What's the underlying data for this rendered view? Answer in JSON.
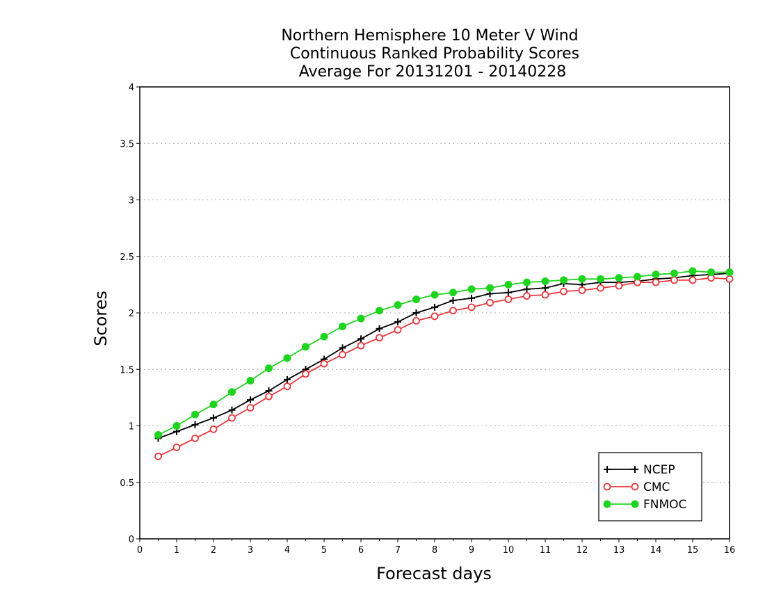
{
  "chart_data": {
    "type": "line",
    "title_lines": [
      "Northern Hemisphere 10 Meter V Wind",
      "Continuous Ranked Probability Scores",
      "Average For 20131201 - 20140228"
    ],
    "xlabel": "Forecast days",
    "ylabel": "Scores",
    "xlim": [
      0,
      16
    ],
    "ylim": [
      0,
      4
    ],
    "xticks": [
      0,
      1,
      2,
      3,
      4,
      5,
      6,
      7,
      8,
      9,
      10,
      11,
      12,
      13,
      14,
      15,
      16
    ],
    "yticks": [
      0,
      0.5,
      1,
      1.5,
      2,
      2.5,
      3,
      3.5,
      4
    ],
    "ytick_labels": [
      "0",
      "0.5",
      "1",
      "1.5",
      "2",
      "2.5",
      "3",
      "3.5",
      "4"
    ],
    "grid": "horizontal dotted",
    "legend_position": "bottom-right",
    "x": [
      0.5,
      1,
      1.5,
      2,
      2.5,
      3,
      3.5,
      4,
      4.5,
      5,
      5.5,
      6,
      6.5,
      7,
      7.5,
      8,
      8.5,
      9,
      9.5,
      10,
      10.5,
      11,
      11.5,
      12,
      12.5,
      13,
      13.5,
      14,
      14.5,
      15,
      15.5,
      16
    ],
    "series": [
      {
        "name": "NCEP",
        "color": "#000000",
        "marker": "plus",
        "values": [
          0.89,
          0.95,
          1.01,
          1.07,
          1.14,
          1.23,
          1.31,
          1.41,
          1.5,
          1.59,
          1.69,
          1.77,
          1.86,
          1.92,
          2.0,
          2.05,
          2.11,
          2.13,
          2.17,
          2.18,
          2.21,
          2.22,
          2.26,
          2.25,
          2.27,
          2.27,
          2.28,
          2.3,
          2.31,
          2.33,
          2.34,
          2.35
        ]
      },
      {
        "name": "CMC",
        "color": "#e8383d",
        "marker": "open-circle",
        "values": [
          0.73,
          0.81,
          0.89,
          0.97,
          1.07,
          1.16,
          1.26,
          1.35,
          1.46,
          1.55,
          1.63,
          1.71,
          1.78,
          1.85,
          1.93,
          1.97,
          2.02,
          2.05,
          2.09,
          2.12,
          2.15,
          2.16,
          2.19,
          2.2,
          2.22,
          2.24,
          2.27,
          2.27,
          2.29,
          2.29,
          2.31,
          2.3
        ]
      },
      {
        "name": "FNMOC",
        "color": "#1ed41e",
        "marker": "filled-circle",
        "values": [
          0.92,
          1.0,
          1.1,
          1.19,
          1.3,
          1.4,
          1.51,
          1.6,
          1.7,
          1.79,
          1.88,
          1.95,
          2.02,
          2.07,
          2.12,
          2.16,
          2.18,
          2.21,
          2.22,
          2.25,
          2.27,
          2.28,
          2.29,
          2.3,
          2.3,
          2.31,
          2.32,
          2.34,
          2.35,
          2.37,
          2.36,
          2.36
        ]
      }
    ]
  }
}
